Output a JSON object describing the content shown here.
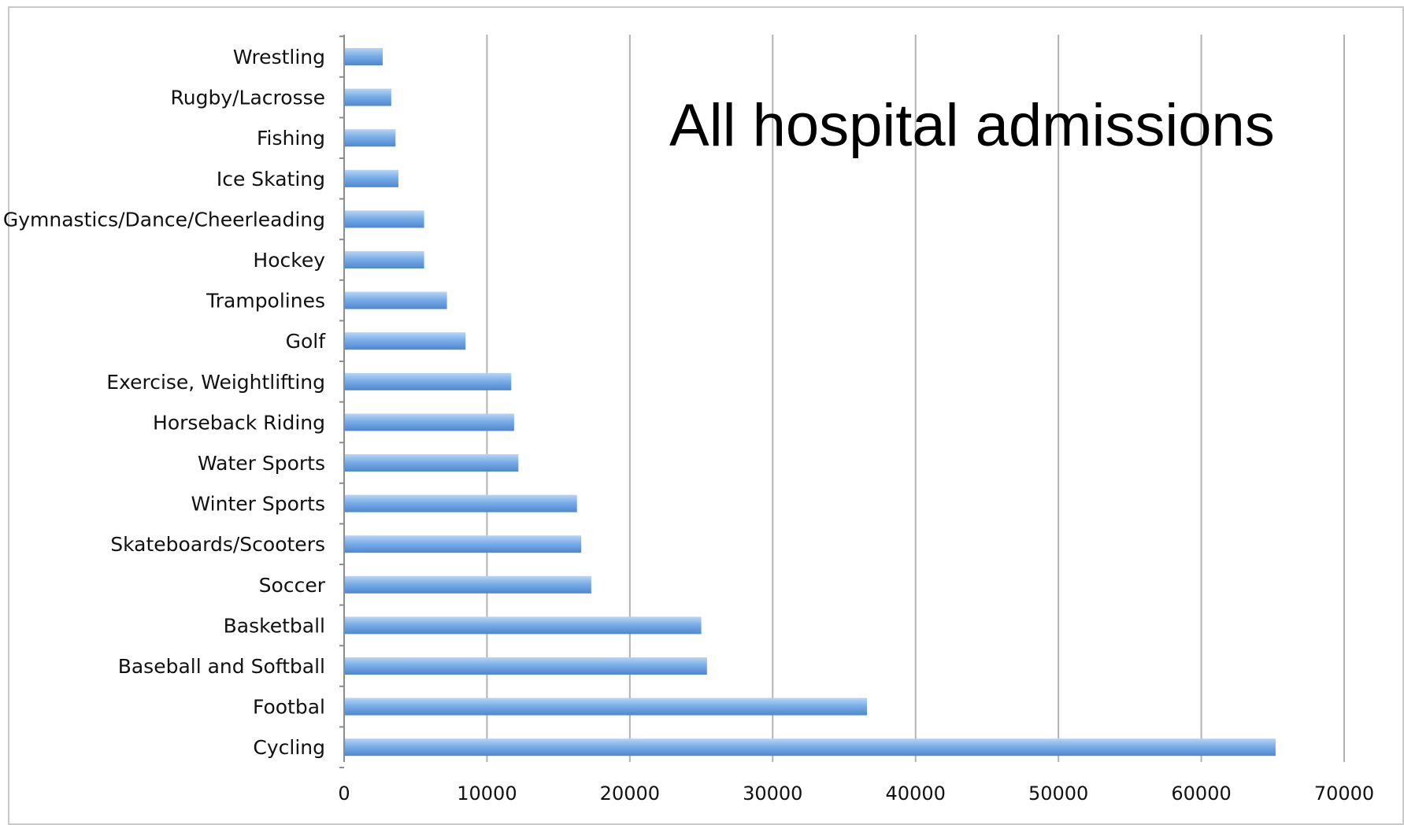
{
  "chart_data": {
    "type": "bar",
    "orientation": "horizontal",
    "title": "",
    "annotation": "All hospital admissions",
    "xlabel": "",
    "ylabel": "",
    "xlim": [
      0,
      70000
    ],
    "xticks": [
      0,
      10000,
      20000,
      30000,
      40000,
      50000,
      60000,
      70000
    ],
    "grid": "vertical",
    "legend": "none",
    "bar_color": "#7aaee8",
    "bar_highlight": "#b8d5f5",
    "bar_shadow": "#4f86cf",
    "categories": [
      "Wrestling",
      "Rugby/Lacrosse",
      "Fishing",
      "Ice Skating",
      "Gymnastics/Dance/Cheerleading",
      "Hockey",
      "Trampolines",
      "Golf",
      "Exercise, Weightlifting",
      "Horseback Riding",
      "Water Sports",
      "Winter Sports",
      "Skateboards/Scooters",
      "Soccer",
      "Basketball",
      "Baseball and Softball",
      "Footbal",
      "Cycling"
    ],
    "values": [
      2700,
      3300,
      3600,
      3800,
      5600,
      5600,
      7200,
      8500,
      11700,
      11900,
      12200,
      16300,
      16600,
      17300,
      25000,
      25400,
      36600,
      65200
    ]
  }
}
